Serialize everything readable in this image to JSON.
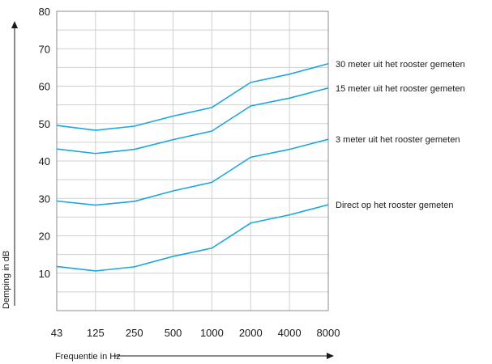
{
  "chart_data": {
    "type": "line",
    "categories": [
      "43",
      "125",
      "250",
      "500",
      "1000",
      "2000",
      "4000",
      "8000"
    ],
    "xlabel": "Frequentie in Hz",
    "ylabel": "Demping in dB",
    "ylim": [
      0,
      80
    ],
    "yticks": [
      "10",
      "20",
      "30",
      "40",
      "50",
      "60",
      "70",
      "80"
    ],
    "grid": true,
    "line_color": "#1aa7de",
    "grid_color": "#d0d0d0",
    "series": [
      {
        "name": "30 meter uit het rooster gemeten",
        "values": [
          49.5,
          48.2,
          49.3,
          52.0,
          54.3,
          61.0,
          63.2,
          66.0
        ]
      },
      {
        "name": "15 meter uit  het rooster gemeten",
        "values": [
          43.2,
          42.0,
          43.1,
          45.7,
          48.0,
          54.7,
          56.8,
          59.5
        ]
      },
      {
        "name": "3 meter uit het rooster gemeten",
        "values": [
          29.3,
          28.2,
          29.2,
          32.0,
          34.3,
          41.0,
          43.1,
          45.8
        ]
      },
      {
        "name": "Direct op het rooster gemeten",
        "values": [
          11.8,
          10.6,
          11.7,
          14.5,
          16.7,
          23.4,
          25.6,
          28.3
        ]
      }
    ]
  }
}
